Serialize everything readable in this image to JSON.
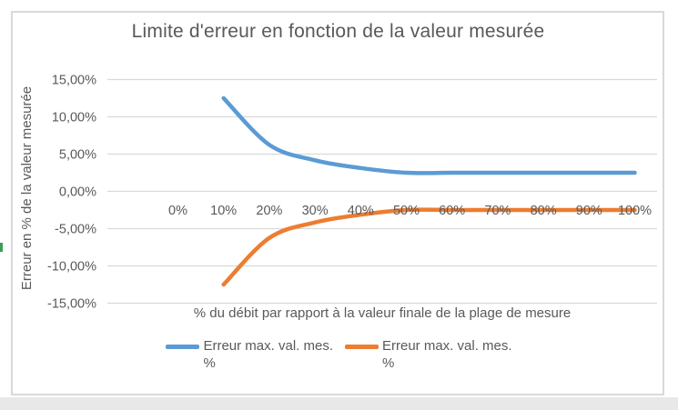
{
  "chart_data": {
    "type": "line",
    "smoothed": true,
    "title": "Limite d'erreur en fonction de la valeur mesurée",
    "xlabel": "% du débit par rapport à la valeur finale de la plage de mesure",
    "ylabel": "Erreur en % de la valeur mesurée",
    "categories": [
      "0%",
      "10%",
      "20%",
      "30%",
      "40%",
      "50%",
      "60%",
      "70%",
      "80%",
      "90%",
      "100%"
    ],
    "series": [
      {
        "name": "Erreur max. val. mes. %",
        "color": "#5B9BD5",
        "values": [
          null,
          12.5,
          6.25,
          4.17,
          3.13,
          2.5,
          2.5,
          2.5,
          2.5,
          2.5,
          2.5
        ]
      },
      {
        "name": "Erreur max. val. mes. %",
        "color": "#ED7D31",
        "values": [
          null,
          -12.5,
          -6.25,
          -4.17,
          -3.13,
          -2.5,
          -2.5,
          -2.5,
          -2.5,
          -2.5,
          -2.5
        ]
      }
    ],
    "y_ticks": [
      {
        "label": "15,00%",
        "value": 15
      },
      {
        "label": "10,00%",
        "value": 10
      },
      {
        "label": "5,00%",
        "value": 5
      },
      {
        "label": "0,00%",
        "value": 0
      },
      {
        "label": "-5,00%",
        "value": -5
      },
      {
        "label": "-10,00%",
        "value": -10
      },
      {
        "label": "-15,00%",
        "value": -15
      }
    ],
    "ylim": [
      -15,
      15
    ],
    "grid": true,
    "legend_position": "bottom"
  },
  "legend": {
    "items": [
      {
        "series": "blue",
        "line1": "Erreur max. val. mes.",
        "line2": "%"
      },
      {
        "series": "orange",
        "line1": "Erreur max. val. mes.",
        "line2": "%"
      }
    ]
  },
  "colors": {
    "accent_blue": "#5B9BD5",
    "accent_orange": "#ED7D31",
    "grid": "#D9D9D9",
    "frame_border": "#D9D9D9",
    "text": "#595959",
    "strip": "#E8E8E8",
    "green_mark": "#3C9E57"
  }
}
